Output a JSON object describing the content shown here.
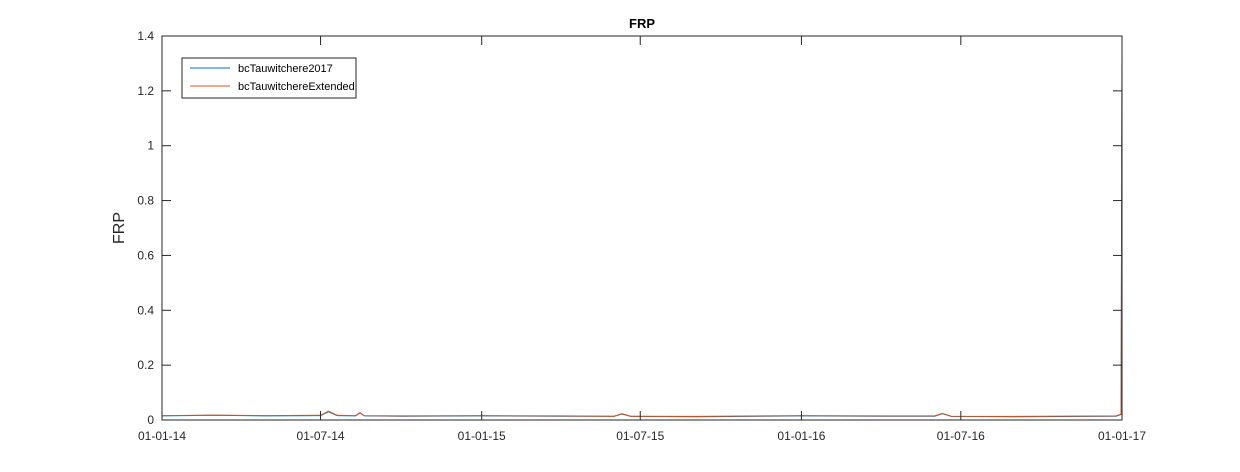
{
  "chart_data": {
    "type": "line",
    "title": "FRP",
    "xlabel": "",
    "ylabel": "FRP",
    "x_range": [
      "2014-01-01",
      "2017-01-01"
    ],
    "ylim": [
      0,
      1.4
    ],
    "x_ticks": [
      {
        "date": "2014-01-01",
        "label": "01-01-14"
      },
      {
        "date": "2014-07-01",
        "label": "01-07-14"
      },
      {
        "date": "2015-01-01",
        "label": "01-01-15"
      },
      {
        "date": "2015-07-01",
        "label": "01-07-15"
      },
      {
        "date": "2016-01-01",
        "label": "01-01-16"
      },
      {
        "date": "2016-07-01",
        "label": "01-07-16"
      },
      {
        "date": "2017-01-01",
        "label": "01-01-17"
      }
    ],
    "y_ticks": [
      {
        "value": 0,
        "label": "0"
      },
      {
        "value": 0.2,
        "label": "0.2"
      },
      {
        "value": 0.4,
        "label": "0.4"
      },
      {
        "value": 0.6,
        "label": "0.6"
      },
      {
        "value": 0.8,
        "label": "0.8"
      },
      {
        "value": 1,
        "label": "1"
      },
      {
        "value": 1.2,
        "label": "1.2"
      },
      {
        "value": 1.4,
        "label": "1.4"
      }
    ],
    "grid": false,
    "legend_position": "top-left",
    "series": [
      {
        "name": "bcTauwitchere2017",
        "color": "#0072BD",
        "x": [
          "2014-01-01",
          "2014-03-01",
          "2014-05-01",
          "2014-07-01",
          "2014-07-10",
          "2014-07-20",
          "2014-08-10",
          "2014-08-15",
          "2014-08-20",
          "2014-10-01",
          "2015-01-01",
          "2015-04-01",
          "2015-06-01",
          "2015-06-10",
          "2015-06-20",
          "2015-09-01",
          "2016-01-01",
          "2016-04-01",
          "2016-06-01",
          "2016-06-10",
          "2016-06-20",
          "2016-09-01",
          "2016-12-25",
          "2016-12-31",
          "2017-01-01"
        ],
        "y": [
          0.015,
          0.017,
          0.015,
          0.016,
          0.03,
          0.016,
          0.015,
          0.026,
          0.015,
          0.014,
          0.015,
          0.014,
          0.013,
          0.022,
          0.013,
          0.012,
          0.015,
          0.014,
          0.014,
          0.023,
          0.013,
          0.012,
          0.014,
          0.02,
          1.33
        ]
      },
      {
        "name": "bcTauwitchereExtended",
        "color": "#D95319",
        "x": [
          "2014-01-01",
          "2014-03-01",
          "2014-05-01",
          "2014-07-01",
          "2014-07-10",
          "2014-07-20",
          "2014-08-10",
          "2014-08-15",
          "2014-08-20",
          "2014-10-01",
          "2015-01-01",
          "2015-04-01",
          "2015-06-01",
          "2015-06-10",
          "2015-06-20",
          "2015-09-01",
          "2016-01-01",
          "2016-04-01",
          "2016-06-01",
          "2016-06-10",
          "2016-06-20",
          "2016-09-01",
          "2016-12-25",
          "2016-12-31",
          "2017-01-01"
        ],
        "y": [
          0.016,
          0.018,
          0.016,
          0.017,
          0.032,
          0.017,
          0.016,
          0.027,
          0.016,
          0.015,
          0.016,
          0.015,
          0.014,
          0.023,
          0.014,
          0.013,
          0.016,
          0.015,
          0.015,
          0.024,
          0.014,
          0.013,
          0.015,
          0.021,
          1.33
        ]
      }
    ]
  }
}
